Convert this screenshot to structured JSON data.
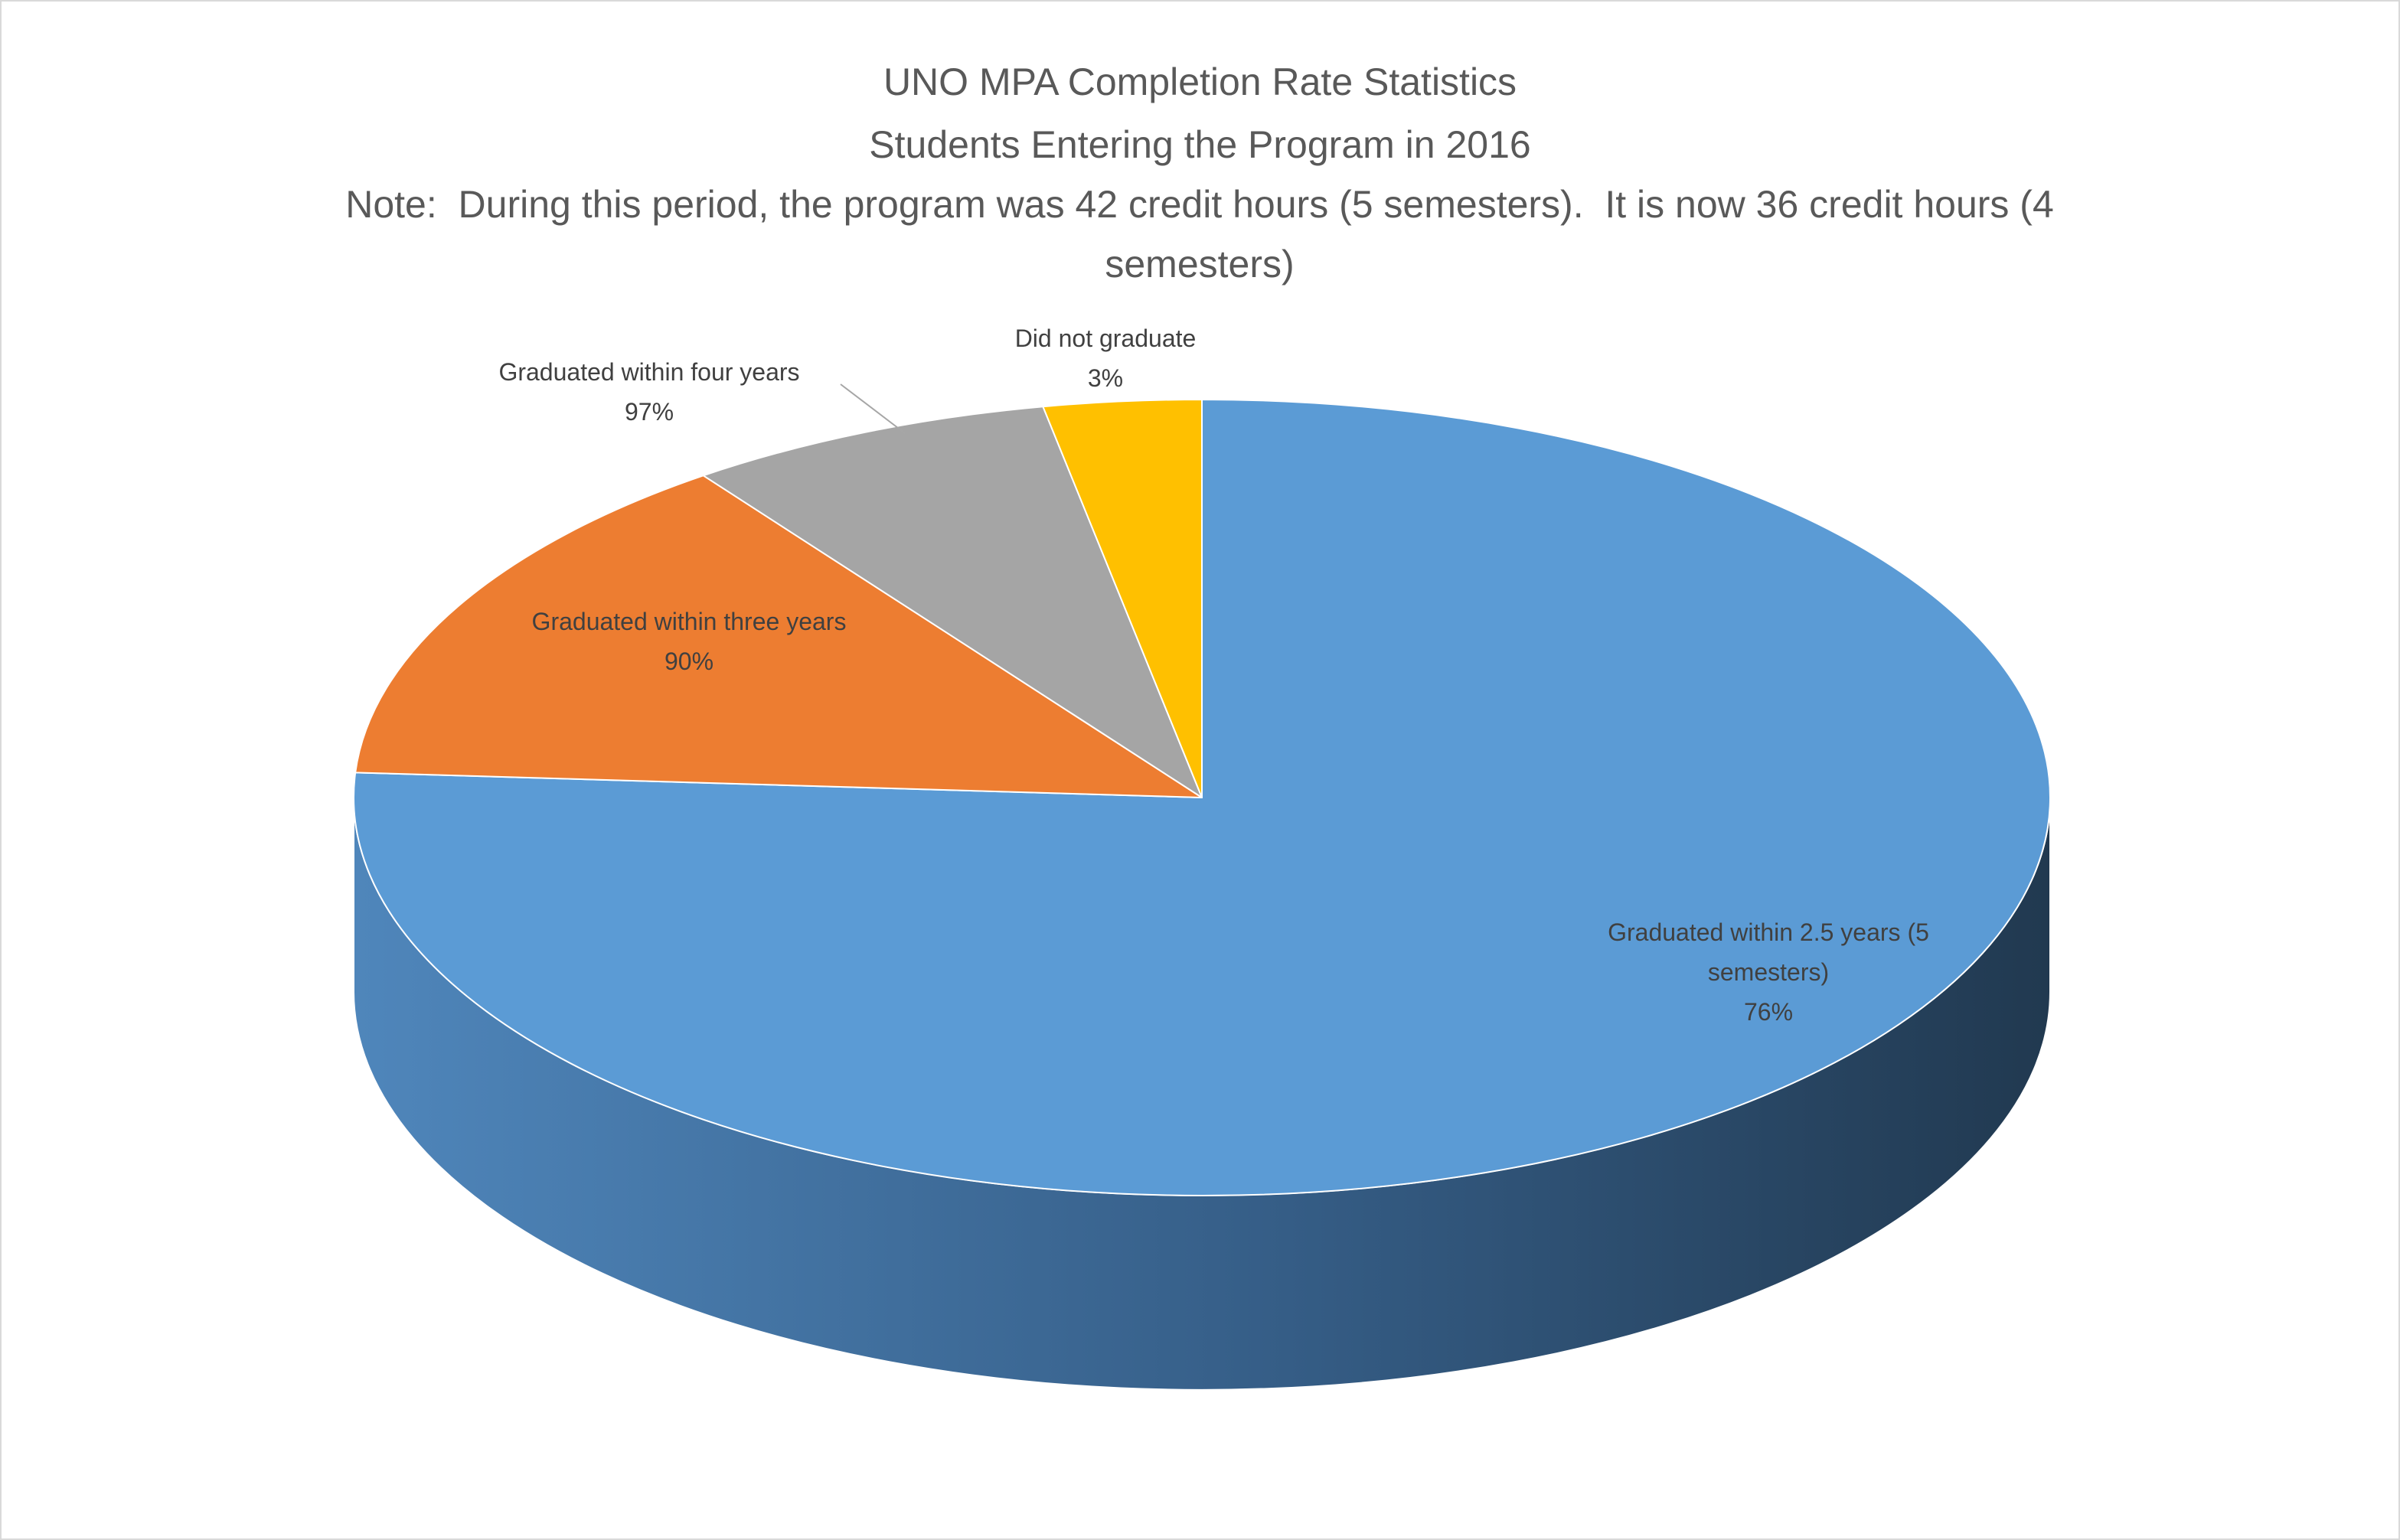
{
  "chart_data": {
    "type": "pie3d",
    "title": "UNO MPA Completion Rate Statistics",
    "subtitle": "Students Entering the Program in 2016",
    "note": "Note:  During this period, the program was 42 credit hours (5 semesters).  It is now 36 credit hours (4 semesters)",
    "categories": [
      "Graduated within 2.5 years (5 semesters)",
      "Graduated within three years",
      "Graduated within four years",
      "Did not graduate"
    ],
    "values": [
      76,
      14,
      7,
      3
    ],
    "annotations": [
      "76%",
      "90%",
      "97%",
      "3%"
    ],
    "colors": [
      "#5b9bd5",
      "#ed7d31",
      "#a5a5a5",
      "#ffc000"
    ]
  }
}
